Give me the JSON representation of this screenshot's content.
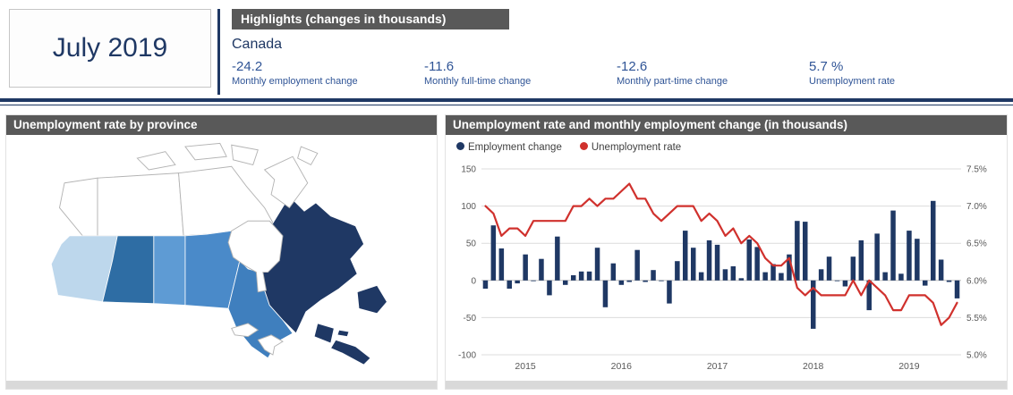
{
  "report_header": {
    "date_label": "July 2019",
    "highlights_title": "Highlights (changes in thousands)",
    "region": "Canada",
    "stats": [
      {
        "value": "-24.2",
        "label": "Monthly employment change"
      },
      {
        "value": "-11.6",
        "label": "Monthly full-time change"
      },
      {
        "value": "-12.6",
        "label": "Monthly part-time change"
      },
      {
        "value": "5.7 %",
        "label": "Unemployment rate"
      }
    ]
  },
  "map_panel": {
    "title": "Unemployment rate by province",
    "no_data_fill": "#ffffff",
    "provinces": {
      "yt": {
        "name": "Yukon",
        "fill": "#ffffff"
      },
      "nt": {
        "name": "Northwest Territories",
        "fill": "#ffffff"
      },
      "nu": {
        "name": "Nunavut",
        "fill": "#ffffff"
      },
      "bc": {
        "name": "British Columbia",
        "fill": "#bdd7ec"
      },
      "ab": {
        "name": "Alberta",
        "fill": "#2e6da4"
      },
      "sk": {
        "name": "Saskatchewan",
        "fill": "#5e9bd4"
      },
      "mb": {
        "name": "Manitoba",
        "fill": "#4a8ac9"
      },
      "on": {
        "name": "Ontario",
        "fill": "#3f7fbe"
      },
      "qc": {
        "name": "Quebec",
        "fill": "#1f3864"
      },
      "nb": {
        "name": "New Brunswick",
        "fill": "#1f3864"
      },
      "pe": {
        "name": "Prince Edward Island",
        "fill": "#1f3864"
      },
      "ns": {
        "name": "Nova Scotia",
        "fill": "#1f3864"
      },
      "nl": {
        "name": "Newfoundland and Labrador",
        "fill": "#1f3864"
      }
    }
  },
  "chart_panel": {
    "title": "Unemployment rate and monthly employment change (in thousands)"
  },
  "chart_data": {
    "type": "combo-bar-line",
    "title": "Unemployment rate and monthly employment change (in thousands)",
    "x_months": [
      "2014-08",
      "2014-09",
      "2014-10",
      "2014-11",
      "2014-12",
      "2015-01",
      "2015-02",
      "2015-03",
      "2015-04",
      "2015-05",
      "2015-06",
      "2015-07",
      "2015-08",
      "2015-09",
      "2015-10",
      "2015-11",
      "2015-12",
      "2016-01",
      "2016-02",
      "2016-03",
      "2016-04",
      "2016-05",
      "2016-06",
      "2016-07",
      "2016-08",
      "2016-09",
      "2016-10",
      "2016-11",
      "2016-12",
      "2017-01",
      "2017-02",
      "2017-03",
      "2017-04",
      "2017-05",
      "2017-06",
      "2017-07",
      "2017-08",
      "2017-09",
      "2017-10",
      "2017-11",
      "2017-12",
      "2018-01",
      "2018-02",
      "2018-03",
      "2018-04",
      "2018-05",
      "2018-06",
      "2018-07",
      "2018-08",
      "2018-09",
      "2018-10",
      "2018-11",
      "2018-12",
      "2019-01",
      "2019-02",
      "2019-03",
      "2019-04",
      "2019-05",
      "2019-06",
      "2019-07"
    ],
    "x_tick_labels": [
      "2015",
      "2016",
      "2017",
      "2018",
      "2019"
    ],
    "x_tick_month_indices": [
      5,
      17,
      29,
      41,
      53
    ],
    "series": [
      {
        "name": "Employment change",
        "type": "bar",
        "axis": "left",
        "color": "#1f3864",
        "values": [
          -11,
          74,
          43,
          -11,
          -4,
          35,
          -1,
          29,
          -20,
          59,
          -6,
          7,
          12,
          12,
          44,
          -36,
          23,
          -6,
          -2,
          41,
          -2,
          14,
          -1,
          -31,
          26,
          67,
          44,
          11,
          54,
          48,
          15,
          19,
          3,
          55,
          45,
          11,
          22,
          10,
          35,
          80,
          79,
          -65,
          15,
          32,
          -1,
          -8,
          32,
          54,
          -40,
          63,
          11,
          94,
          9,
          67,
          56,
          -7,
          107,
          28,
          -2,
          -24.2
        ]
      },
      {
        "name": "Unemployment rate",
        "type": "line",
        "axis": "right",
        "color": "#d0312d",
        "values": [
          7.0,
          6.9,
          6.6,
          6.7,
          6.7,
          6.6,
          6.8,
          6.8,
          6.8,
          6.8,
          6.8,
          7.0,
          7.0,
          7.1,
          7.0,
          7.1,
          7.1,
          7.2,
          7.3,
          7.1,
          7.1,
          6.9,
          6.8,
          6.9,
          7.0,
          7.0,
          7.0,
          6.8,
          6.9,
          6.8,
          6.6,
          6.7,
          6.5,
          6.6,
          6.5,
          6.3,
          6.2,
          6.2,
          6.3,
          5.9,
          5.8,
          5.9,
          5.8,
          5.8,
          5.8,
          5.8,
          6.0,
          5.8,
          6.0,
          5.9,
          5.8,
          5.6,
          5.6,
          5.8,
          5.8,
          5.8,
          5.7,
          5.4,
          5.5,
          5.7
        ]
      }
    ],
    "left_axis": {
      "ticks": [
        150,
        100,
        50,
        0,
        -50,
        -100
      ],
      "min": -100,
      "max": 150
    },
    "right_axis": {
      "ticks": [
        "7.5%",
        "7.0%",
        "6.5%",
        "6.0%",
        "5.5%",
        "5.0%"
      ],
      "min": 5.0,
      "max": 7.5
    },
    "grid": true,
    "legend_position": "top-left"
  },
  "colors": {
    "navy": "#1f3864",
    "stat_blue": "#2f5496",
    "header_gray": "#595959",
    "grid_gray": "#dcdcdc",
    "line_red": "#d0312d"
  }
}
